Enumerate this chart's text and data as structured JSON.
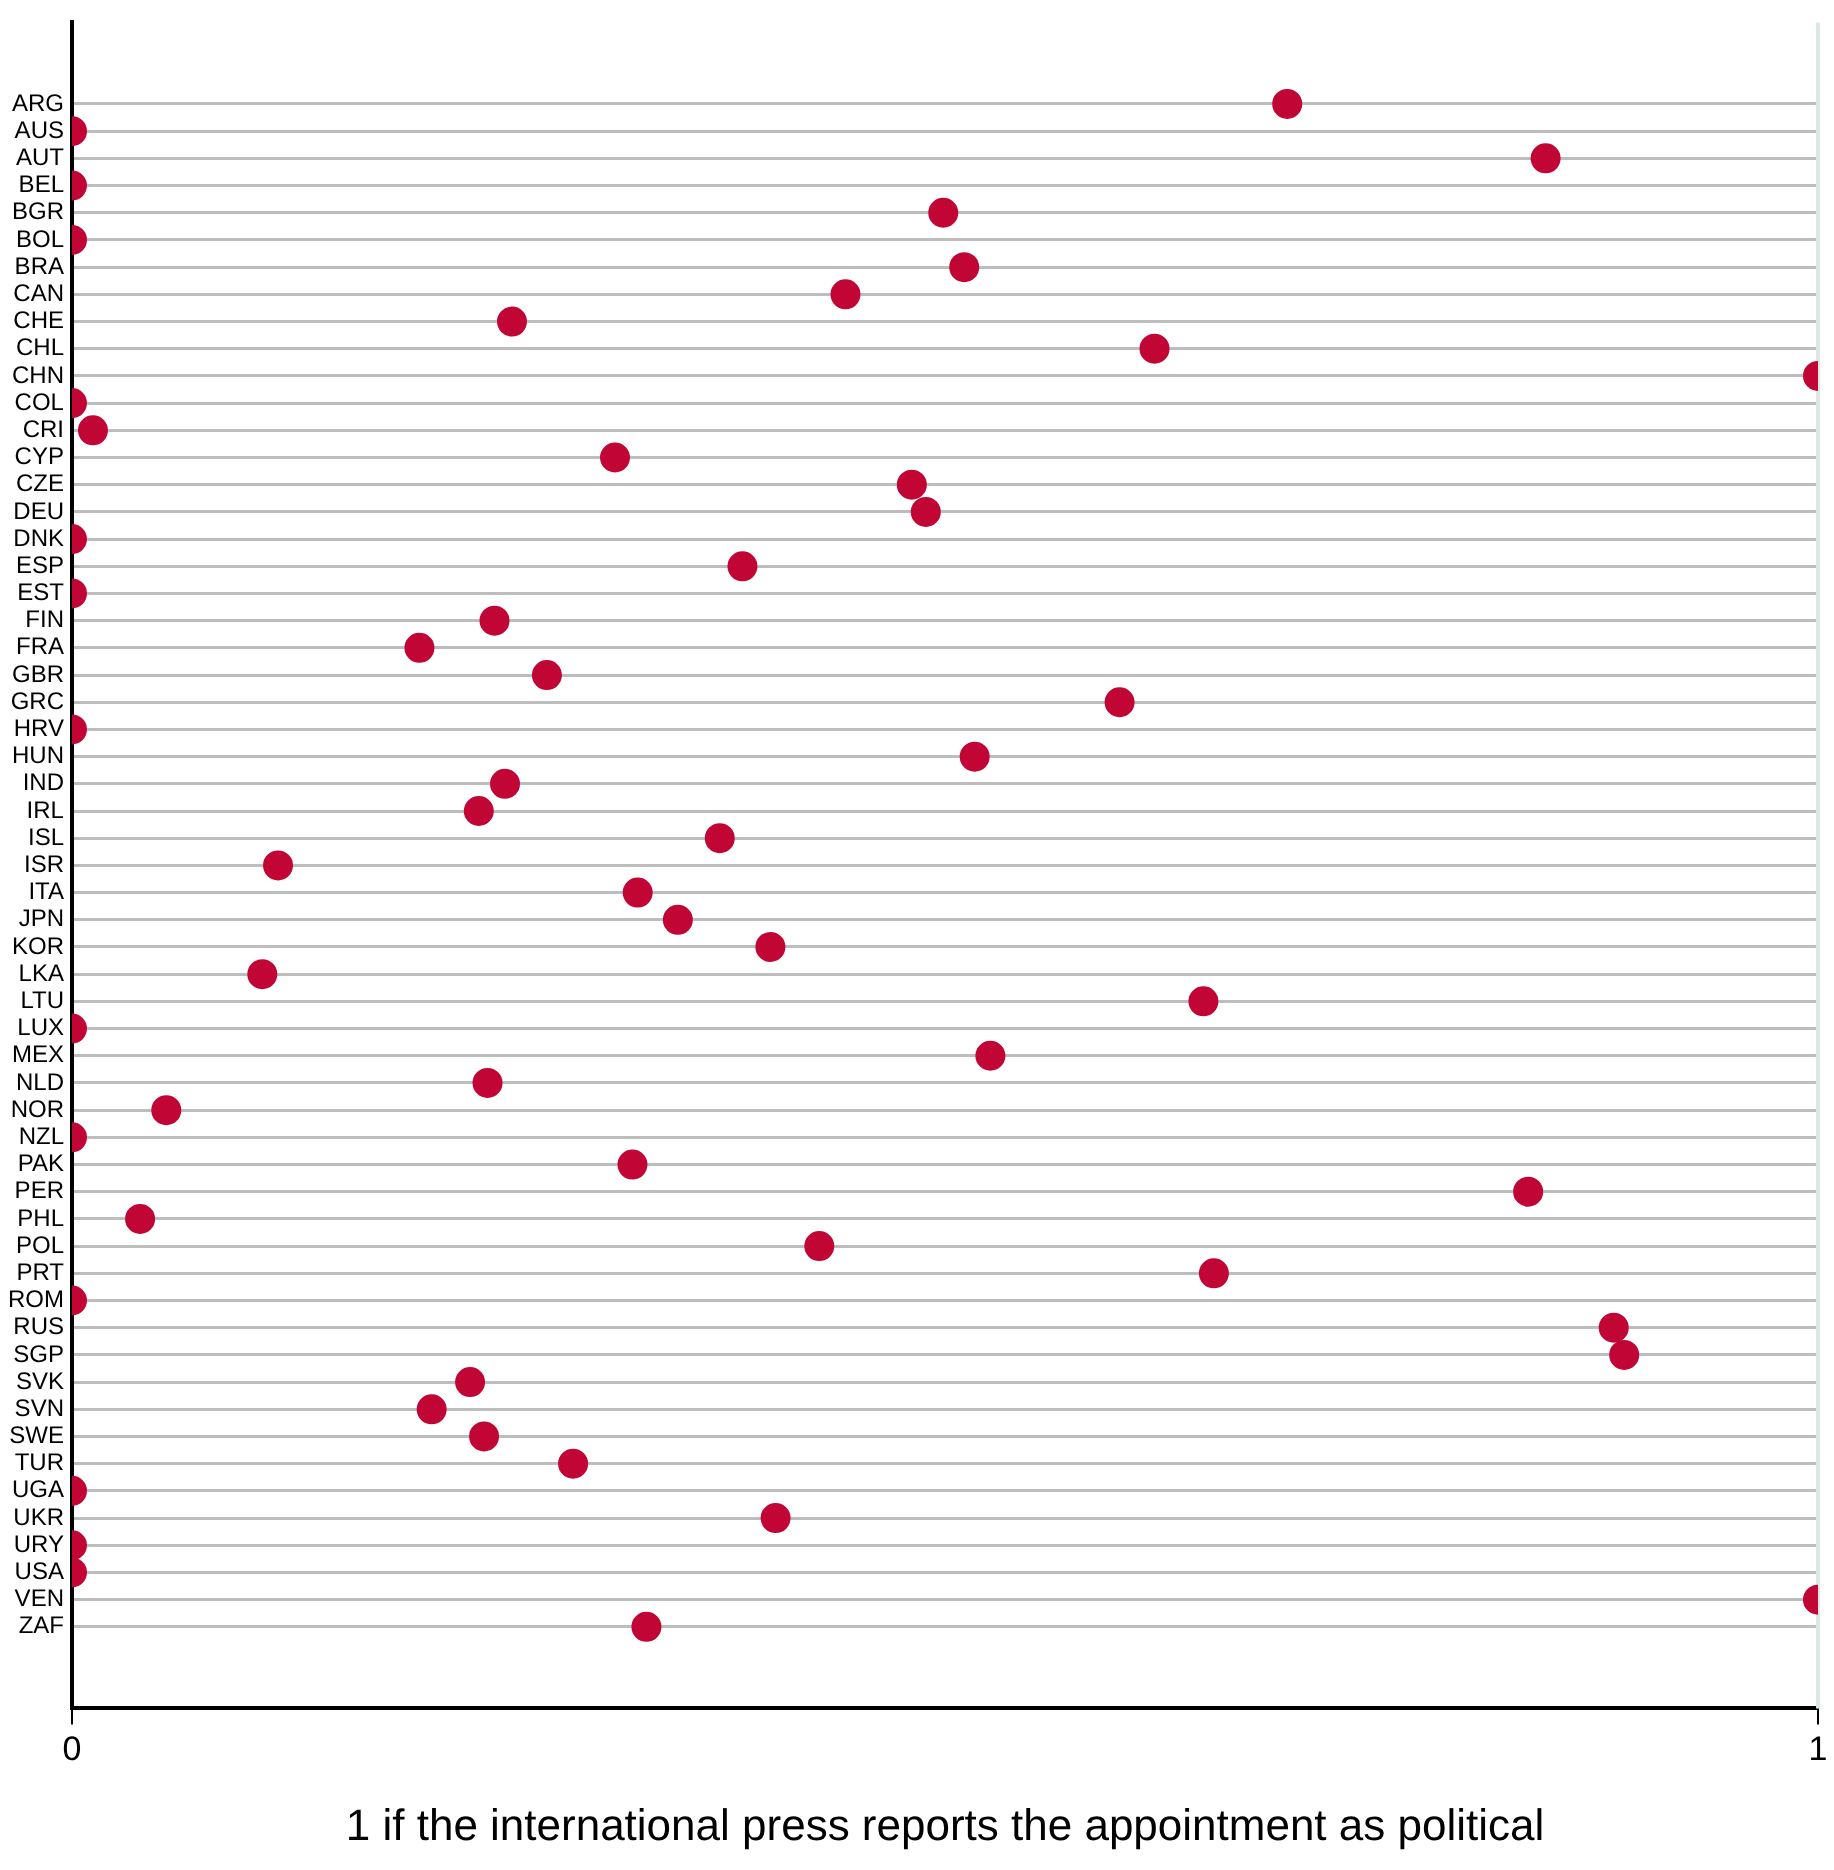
{
  "chart_data": {
    "type": "scatter",
    "xlabel": "1 if the international press reports the appointment as political",
    "categories": [
      "ARG",
      "AUS",
      "AUT",
      "BEL",
      "BGR",
      "BOL",
      "BRA",
      "CAN",
      "CHE",
      "CHL",
      "CHN",
      "COL",
      "CRI",
      "CYP",
      "CZE",
      "DEU",
      "DNK",
      "ESP",
      "EST",
      "FIN",
      "FRA",
      "GBR",
      "GRC",
      "HRV",
      "HUN",
      "IND",
      "IRL",
      "ISL",
      "ISR",
      "ITA",
      "JPN",
      "KOR",
      "LKA",
      "LTU",
      "LUX",
      "MEX",
      "NLD",
      "NOR",
      "NZL",
      "PAK",
      "PER",
      "PHL",
      "POL",
      "PRT",
      "ROM",
      "RUS",
      "SGP",
      "SVK",
      "SVN",
      "SWE",
      "TUR",
      "UGA",
      "UKR",
      "URY",
      "USA",
      "VEN",
      "ZAF"
    ],
    "orientation": "horizontal",
    "series": [
      {
        "color": "#c10534",
        "values": [
          0.696,
          0,
          0.844,
          0,
          0.499,
          0,
          0.511,
          0.443,
          0.252,
          0.62,
          1,
          0,
          0.012,
          0.311,
          0.481,
          0.489,
          0,
          0.384,
          0,
          0.242,
          0.199,
          0.272,
          0.6,
          0,
          0.517,
          0.248,
          0.233,
          0.371,
          0.118,
          0.324,
          0.347,
          0.4,
          0.109,
          0.648,
          0,
          0.526,
          0.238,
          0.054,
          0,
          0.321,
          0.834,
          0.039,
          0.428,
          0.654,
          0,
          0.883,
          0.889,
          0.228,
          0.206,
          0.236,
          0.287,
          0,
          0.403,
          0,
          0,
          1,
          0.329
        ]
      }
    ],
    "xlim": [
      0,
      1
    ],
    "xticks": [
      0,
      1
    ],
    "ref_lines": [
      {
        "axis": "x",
        "value": 1,
        "color": "#dde8e5"
      }
    ],
    "grid": "y",
    "legend": false,
    "marker": "circle"
  }
}
